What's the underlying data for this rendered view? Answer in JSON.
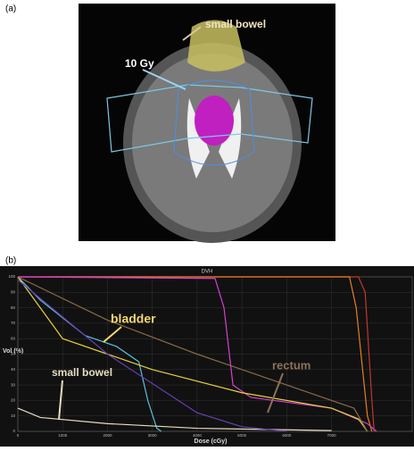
{
  "panel_labels": [
    "(a)",
    "(b)"
  ],
  "ct_image": {
    "annotations": [
      "small bowel",
      "10 Gy"
    ]
  },
  "chart_data": {
    "type": "line",
    "title": "DVH",
    "x_label": "Dose (cGy)",
    "y_label": "Vol (%)",
    "xlim": [
      0,
      8800
    ],
    "ylim": [
      0,
      100
    ],
    "xticks": [
      0,
      1000,
      2000,
      3000,
      4000,
      5000,
      6000,
      7000
    ],
    "yticks": [
      0,
      10,
      20,
      30,
      40,
      50,
      60,
      70,
      80,
      90,
      100
    ],
    "grid": true,
    "annotations": [
      {
        "text": "bladder",
        "color": "#f5d76e"
      },
      {
        "text": "rectum",
        "color": "#8b7355"
      },
      {
        "text": "small bowel",
        "color": "#e8dcc0"
      }
    ],
    "series": [
      {
        "color": "#c0392b",
        "x": [
          0,
          7600,
          7750,
          7900,
          7950
        ],
        "values": [
          100,
          100,
          90,
          20,
          0
        ]
      },
      {
        "color": "#e67e22",
        "x": [
          0,
          7400,
          7550,
          7800,
          7900
        ],
        "values": [
          100,
          100,
          80,
          10,
          0
        ]
      },
      {
        "color": "#d63fd6",
        "x": [
          0,
          4400,
          4600,
          4800,
          5200,
          7000,
          7800,
          8000
        ],
        "values": [
          100,
          99,
          80,
          30,
          22,
          15,
          5,
          0
        ]
      },
      {
        "color": "#5bc0de",
        "x": [
          0,
          500,
          1500,
          2200,
          2700,
          2900,
          3100,
          3200
        ],
        "values": [
          100,
          85,
          62,
          55,
          45,
          20,
          2,
          0
        ]
      },
      {
        "color": "#e6d23c",
        "x": [
          0,
          1000,
          2000,
          3000,
          5000,
          7000,
          7600,
          7800
        ],
        "values": [
          100,
          60,
          50,
          40,
          25,
          15,
          8,
          0
        ]
      },
      {
        "color": "#8b6b4a",
        "x": [
          0,
          2000,
          4000,
          6000,
          7500,
          7800
        ],
        "values": [
          100,
          72,
          50,
          30,
          15,
          0
        ]
      },
      {
        "color": "#e8dcc0",
        "x": [
          0,
          500,
          2000,
          4000,
          6000,
          7000
        ],
        "values": [
          15,
          9,
          5,
          2,
          1,
          0.5
        ]
      },
      {
        "color": "#6a3fb5",
        "x": [
          0,
          2000,
          4000,
          5000,
          6000
        ],
        "values": [
          98,
          50,
          12,
          3,
          0
        ]
      }
    ]
  }
}
